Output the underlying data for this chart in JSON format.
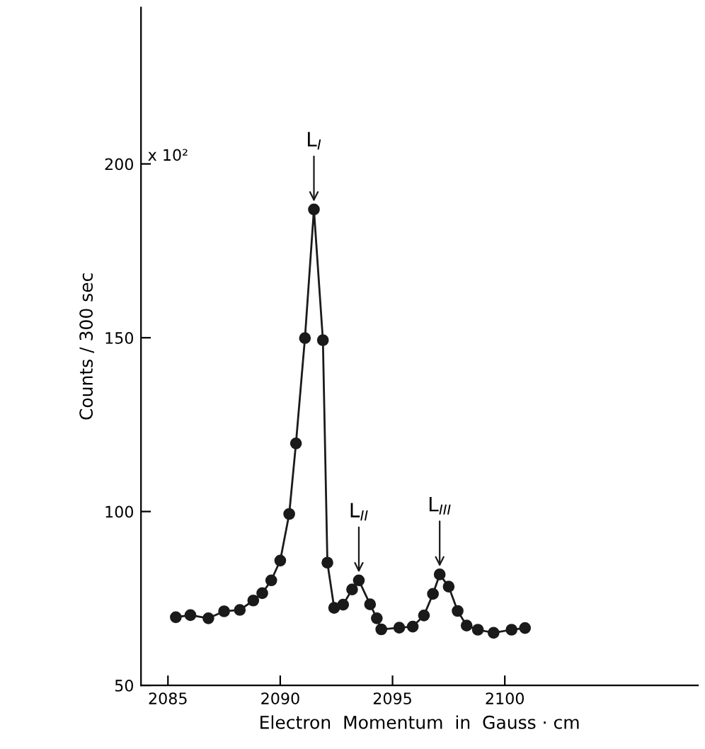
{
  "chart_data": {
    "type": "line",
    "xlabel": "Electron  Momentum  in  Gauss · cm",
    "ylabel": "Counts / 300 sec",
    "x": [
      2085.35,
      2086.0,
      2086.8,
      2087.5,
      2088.2,
      2088.8,
      2089.2,
      2089.6,
      2090.0,
      2090.4,
      2090.7,
      2091.1,
      2091.5,
      2091.9,
      2092.1,
      2092.4,
      2092.8,
      2093.2,
      2093.5,
      2094.0,
      2094.3,
      2094.5,
      2095.3,
      2095.9,
      2096.4,
      2096.8,
      2097.1,
      2097.5,
      2097.9,
      2098.3,
      2098.8,
      2099.5,
      2100.3,
      2100.9
    ],
    "series": [
      {
        "color": "#1a1a1a",
        "values": [
          69.6,
          70.2,
          69.3,
          71.3,
          71.7,
          74.4,
          76.5,
          80.2,
          85.9,
          99.3,
          119.6,
          149.9,
          186.9,
          149.3,
          85.3,
          72.3,
          73.2,
          77.6,
          80.2,
          73.3,
          69.3,
          66.1,
          66.6,
          66.9,
          70.1,
          76.3,
          81.9,
          78.4,
          71.4,
          67.2,
          66.0,
          65.1,
          66.0,
          66.5
        ]
      }
    ],
    "xlim": [
      2083.8,
      2108.6
    ],
    "ylim": [
      50,
      245
    ],
    "xticks": [
      2085,
      2090,
      2095,
      2100
    ],
    "yticks": [
      50,
      100,
      150,
      200
    ],
    "annotations": [
      "x 10²",
      {
        "text": "L$_{I}$",
        "x": 2091.5,
        "y": 186.9
      },
      {
        "text": "L$_{II}$",
        "x": 2093.5,
        "y": 80.2
      },
      {
        "text": "L$_{III}$",
        "x": 2097.1,
        "y": 81.9
      }
    ],
    "marker": "circle",
    "line_style": "solid",
    "grid": false,
    "legend": false
  }
}
